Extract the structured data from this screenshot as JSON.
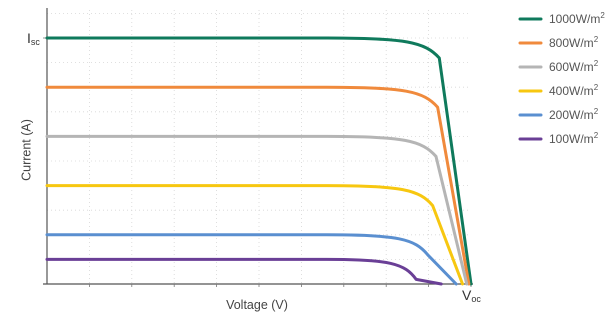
{
  "chart_data": {
    "type": "line",
    "title": "",
    "xlabel": "Voltage (V)",
    "ylabel": "Current (A)",
    "xlim": [
      0,
      1
    ],
    "ylim": [
      0,
      1
    ],
    "grid": true,
    "legend_position": "top-right",
    "x_tick_labels": [
      {
        "main": "V",
        "sub": "oc"
      }
    ],
    "y_tick_labels": [
      {
        "main": "I",
        "sub": "sc"
      }
    ],
    "series": [
      {
        "name": "1000W/m",
        "sup": "2",
        "color": "#0f7a5c",
        "isc": 1.0,
        "knee_start": 0.66,
        "v_end": 1.0
      },
      {
        "name": "800W/m",
        "sup": "2",
        "color": "#f08a3c",
        "isc": 0.8,
        "knee_start": 0.66,
        "v_end": 0.995
      },
      {
        "name": "600W/m",
        "sup": "2",
        "color": "#b5b5b5",
        "isc": 0.6,
        "knee_start": 0.66,
        "v_end": 0.99
      },
      {
        "name": "400W/m",
        "sup": "2",
        "color": "#f7c710",
        "isc": 0.4,
        "knee_start": 0.66,
        "v_end": 0.98
      },
      {
        "name": "200W/m",
        "sup": "2",
        "color": "#5a8fd0",
        "isc": 0.2,
        "knee_start": 0.66,
        "v_end": 0.965
      },
      {
        "name": "100W/m",
        "sup": "2",
        "color": "#6a3f96",
        "isc": 0.1,
        "knee_start": 0.66,
        "v_end": 0.93
      }
    ]
  }
}
